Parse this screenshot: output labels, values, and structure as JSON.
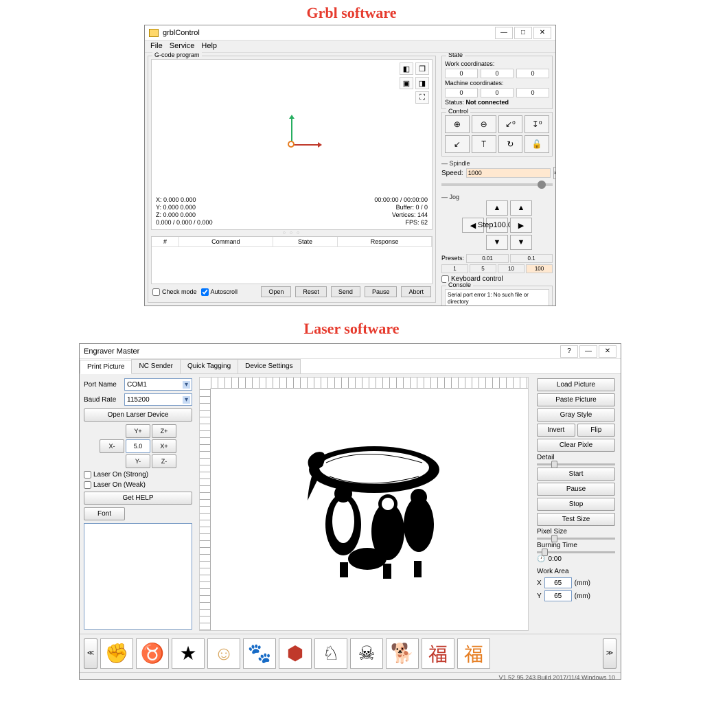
{
  "heading1": "Grbl software",
  "heading2": "Laser software",
  "grbl": {
    "title": "grblControl",
    "menus": [
      "File",
      "Service",
      "Help"
    ],
    "group_gcode": "G-code program",
    "stats_left": [
      "X: 0.000    0.000",
      "Y: 0.000    0.000",
      "Z: 0.000    0.000",
      "0.000 / 0.000 / 0.000"
    ],
    "stats_right": [
      "00:00:00 / 00:00:00",
      "Buffer: 0 / 0",
      "Vertices: 144",
      "FPS: 62"
    ],
    "table_headers": [
      "#",
      "Command",
      "State",
      "Response"
    ],
    "check_mode": "Check mode",
    "autoscroll": "Autoscroll",
    "buttons": [
      "Open",
      "Reset",
      "Send",
      "Pause",
      "Abort"
    ],
    "state": {
      "title": "State",
      "work_label": "Work coordinates:",
      "work": [
        "0",
        "0",
        "0"
      ],
      "machine_label": "Machine coordinates:",
      "machine": [
        "0",
        "0",
        "0"
      ],
      "status_label": "Status:",
      "status_value": "Not connected"
    },
    "control": {
      "title": "Control"
    },
    "spindle": {
      "title": "— Spindle",
      "speed_label": "Speed:",
      "speed": "1000"
    },
    "jog": {
      "title": "— Jog",
      "step_label": "Step",
      "step": "100.00"
    },
    "presets": {
      "label": "Presets:",
      "vals": [
        "0.01",
        "0.1",
        "1",
        "5",
        "10",
        "100"
      ]
    },
    "keyboard": "Keyboard control",
    "console": {
      "title": "Console",
      "text": "Serial port error 1: No such file or directory"
    }
  },
  "laser": {
    "title": "Engraver Master",
    "tabs": [
      "Print Picture",
      "NC Sender",
      "Quick Tagging",
      "Device Settings"
    ],
    "port_label": "Port Name",
    "port": "COM1",
    "baud_label": "Baud Rate",
    "baud": "115200",
    "open_device": "Open Larser Device",
    "jog": {
      "yp": "Y+",
      "zp": "Z+",
      "xm": "X-",
      "val": "5.0",
      "xp": "X+",
      "ym": "Y-",
      "zm": "Z-"
    },
    "laser_strong": "Laser On (Strong)",
    "laser_weak": "Laser On (Weak)",
    "get_help": "Get HELP",
    "font": "Font",
    "right": {
      "load": "Load Picture",
      "paste": "Paste Picture",
      "gray": "Gray Style",
      "invert": "Invert",
      "flip": "Flip",
      "clear": "Clear Pixle",
      "detail": "Detail",
      "start": "Start",
      "pause": "Pause",
      "stop": "Stop",
      "test": "Test Size",
      "pixel": "Pixel Size",
      "burn": "Burning Time",
      "time": "0:00",
      "work_area": "Work Area",
      "x": "65",
      "y": "65",
      "unit": "(mm)"
    },
    "thumbs_colors": [
      "#000",
      "#000",
      "#000",
      "#d9a760",
      "#1b4db3",
      "#c0392b",
      "#000",
      "#000",
      "#000",
      "#c0392b",
      "#e67e22"
    ],
    "thumbs_glyphs": [
      "✊",
      "♉",
      "★",
      "☺",
      "🐾",
      "⬢",
      "♘",
      "☠",
      "🐕",
      "福",
      "福"
    ],
    "status": "V1.52.95.243 Build 2017/11/4 Windows 10"
  }
}
